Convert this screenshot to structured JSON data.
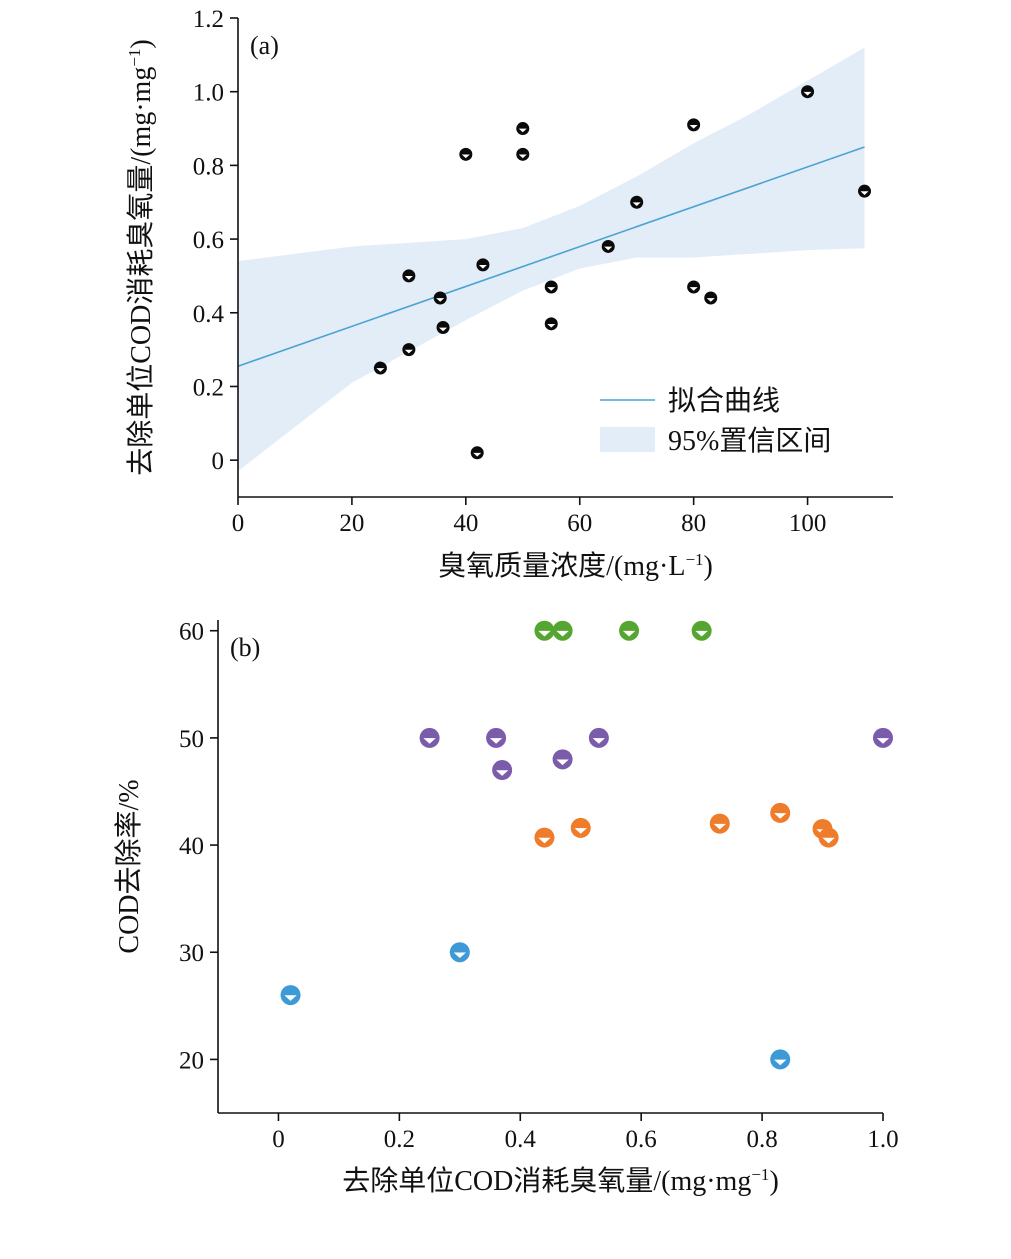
{
  "chart_data": [
    {
      "panel": "(a)",
      "type": "scatter",
      "xlabel": "臭氧质量浓度/(mg·L",
      "xlabel_sup": "−1",
      "xlabel_end": ")",
      "ylabel": "去除单位COD消耗臭氧量/(mg·mg",
      "ylabel_sup": "−1",
      "ylabel_end": ")",
      "xlim": [
        0,
        115
      ],
      "ylim": [
        -0.1,
        1.2
      ],
      "xticks": [
        0,
        20,
        40,
        60,
        80,
        100
      ],
      "yticks": [
        0,
        0.2,
        0.4,
        0.6,
        0.8,
        1.0,
        1.2
      ],
      "ytick_labels": [
        "0",
        "0.2",
        "0.4",
        "0.6",
        "0.8",
        "1.0",
        "1.2"
      ],
      "grid": false,
      "legend_position": "bottom-right",
      "legend": {
        "fit_label": "拟合曲线",
        "ci_label": "95%置信区间"
      },
      "fit_line": {
        "x": [
          0,
          110
        ],
        "y": [
          0.255,
          0.85
        ]
      },
      "confidence_band": {
        "x": [
          0,
          20,
          40,
          50,
          60,
          70,
          80,
          90,
          100,
          110
        ],
        "upper": [
          0.54,
          0.58,
          0.6,
          0.63,
          0.69,
          0.77,
          0.86,
          0.94,
          1.03,
          1.12
        ],
        "lower": [
          -0.03,
          0.21,
          0.38,
          0.46,
          0.52,
          0.55,
          0.55,
          0.56,
          0.57,
          0.575
        ]
      },
      "series": [
        {
          "color": "#0a0a0a",
          "points": [
            [
              25,
              0.25
            ],
            [
              30,
              0.3
            ],
            [
              30,
              0.5
            ],
            [
              35.5,
              0.44
            ],
            [
              36,
              0.36
            ],
            [
              40,
              0.83
            ],
            [
              42,
              0.02
            ],
            [
              43,
              0.53
            ],
            [
              50,
              0.9
            ],
            [
              50,
              0.83
            ],
            [
              55,
              0.47
            ],
            [
              55,
              0.37
            ],
            [
              65,
              0.58
            ],
            [
              70,
              0.7
            ],
            [
              80,
              0.91
            ],
            [
              80,
              0.47
            ],
            [
              83,
              0.44
            ],
            [
              100,
              1.0
            ],
            [
              110,
              0.73
            ]
          ]
        }
      ]
    },
    {
      "panel": "(b)",
      "type": "scatter",
      "xlabel": "去除单位COD消耗臭氧量/(mg·mg",
      "xlabel_sup": "−1",
      "xlabel_end": ")",
      "ylabel": "COD去除率/%",
      "xlim": [
        -0.1,
        1.0
      ],
      "ylim": [
        15,
        61
      ],
      "xticks": [
        0,
        0.2,
        0.4,
        0.6,
        0.8,
        1.0
      ],
      "xtick_labels": [
        "0",
        "0.2",
        "0.4",
        "0.6",
        "0.8",
        "1.0"
      ],
      "yticks": [
        20,
        30,
        40,
        50,
        60
      ],
      "grid": false,
      "series": [
        {
          "color": "#55a630",
          "points": [
            [
              0.44,
              60
            ],
            [
              0.47,
              60
            ],
            [
              0.58,
              60
            ],
            [
              0.7,
              60
            ]
          ]
        },
        {
          "color": "#7b5cab",
          "points": [
            [
              0.25,
              50
            ],
            [
              0.36,
              50
            ],
            [
              0.37,
              47
            ],
            [
              0.47,
              48
            ],
            [
              0.53,
              50
            ],
            [
              1.0,
              50
            ]
          ]
        },
        {
          "color": "#ee7c2a",
          "points": [
            [
              0.44,
              40.7
            ],
            [
              0.5,
              41.6
            ],
            [
              0.73,
              42
            ],
            [
              0.83,
              43
            ],
            [
              0.9,
              41.5
            ],
            [
              0.91,
              40.7
            ]
          ]
        },
        {
          "color": "#3d9ad6",
          "points": [
            [
              0.02,
              26
            ],
            [
              0.3,
              30
            ],
            [
              0.83,
              20
            ]
          ]
        }
      ]
    }
  ]
}
